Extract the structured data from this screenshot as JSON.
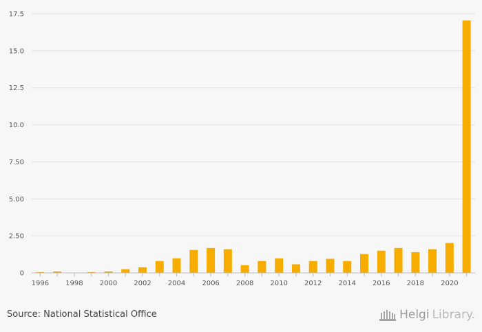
{
  "chart_data": {
    "type": "bar",
    "title": "",
    "xlabel": "",
    "ylabel": "",
    "ylim": [
      0,
      17.5
    ],
    "yticks": [
      0,
      2.5,
      5,
      7.5,
      10,
      12.5,
      15,
      17.5
    ],
    "ytick_labels": [
      "0",
      "2.50",
      "5.00",
      "7.50",
      "10.0",
      "12.5",
      "15.0",
      "17.5"
    ],
    "categories": [
      "1996",
      "1997",
      "1998",
      "1999",
      "2000",
      "2001",
      "2002",
      "2003",
      "2004",
      "2005",
      "2006",
      "2007",
      "2008",
      "2009",
      "2010",
      "2011",
      "2012",
      "2013",
      "2014",
      "2015",
      "2016",
      "2017",
      "2018",
      "2019",
      "2020",
      "2021"
    ],
    "xtick_labels": [
      "1996",
      "1998",
      "2000",
      "2002",
      "2004",
      "2006",
      "2008",
      "2010",
      "2012",
      "2014",
      "2016",
      "2018",
      "2020"
    ],
    "series": [
      {
        "name": "Value",
        "color": "#f7ad00",
        "values": [
          0.05,
          0.1,
          0.0,
          0.05,
          0.1,
          0.25,
          0.38,
          0.8,
          0.98,
          1.55,
          1.68,
          1.6,
          0.52,
          0.8,
          0.98,
          0.58,
          0.8,
          0.95,
          0.8,
          1.27,
          1.5,
          1.68,
          1.4,
          1.6,
          2.02,
          17.05
        ]
      }
    ]
  },
  "footer": {
    "source": "Source: National Statistical Office",
    "brand_main": "Helgi",
    "brand_light": "Library."
  }
}
